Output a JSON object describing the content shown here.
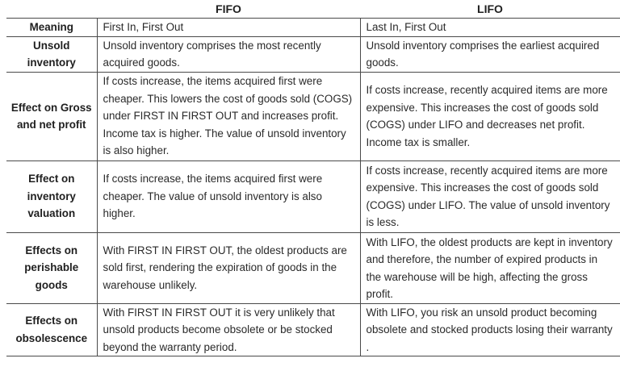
{
  "table": {
    "columns": [
      "",
      "FIFO",
      "LIFO"
    ],
    "rows": [
      {
        "label": "Meaning",
        "fifo": "First In, First Out",
        "lifo": "Last In, First Out"
      },
      {
        "label": "Unsold inventory",
        "fifo": "Unsold inventory comprises the most recently acquired goods.",
        "lifo": "Unsold inventory comprises the earliest acquired goods."
      },
      {
        "label": "Effect on Gross and net profit",
        "fifo": "If costs increase, the items acquired first were cheaper. This lowers the cost of goods sold (COGS) under FIRST IN FIRST OUT and increases profit. Income tax is higher. The value of unsold inventory is also higher.",
        "lifo": "If costs increase, recently acquired items are more expensive. This increases the cost of goods sold (COGS) under LIFO and decreases net profit. Income tax is smaller."
      },
      {
        "label": "Effect on inventory valuation",
        "fifo": "If costs increase, the items acquired first were cheaper. The value of unsold inventory is also higher.",
        "lifo": "If costs increase, recently acquired items are more expensive. This increases the cost of goods sold (COGS) under LIFO. The value of unsold inventory is less."
      },
      {
        "label": "Effects on perishable goods",
        "fifo": "With FIRST IN FIRST OUT, the oldest products are sold first, rendering the expiration of goods in the warehouse unlikely.",
        "lifo": "With LIFO, the oldest products are kept in inventory and therefore, the number of expired products in the warehouse will be high, affecting the gross profit."
      },
      {
        "label": "Effects on obsolescence",
        "fifo": "With FIRST IN FIRST OUT it is very unlikely that unsold products become obsolete or be stocked beyond the warranty period.",
        "lifo": "With LIFO, you risk an unsold product becoming obsolete and stocked products losing their warranty ."
      }
    ]
  }
}
